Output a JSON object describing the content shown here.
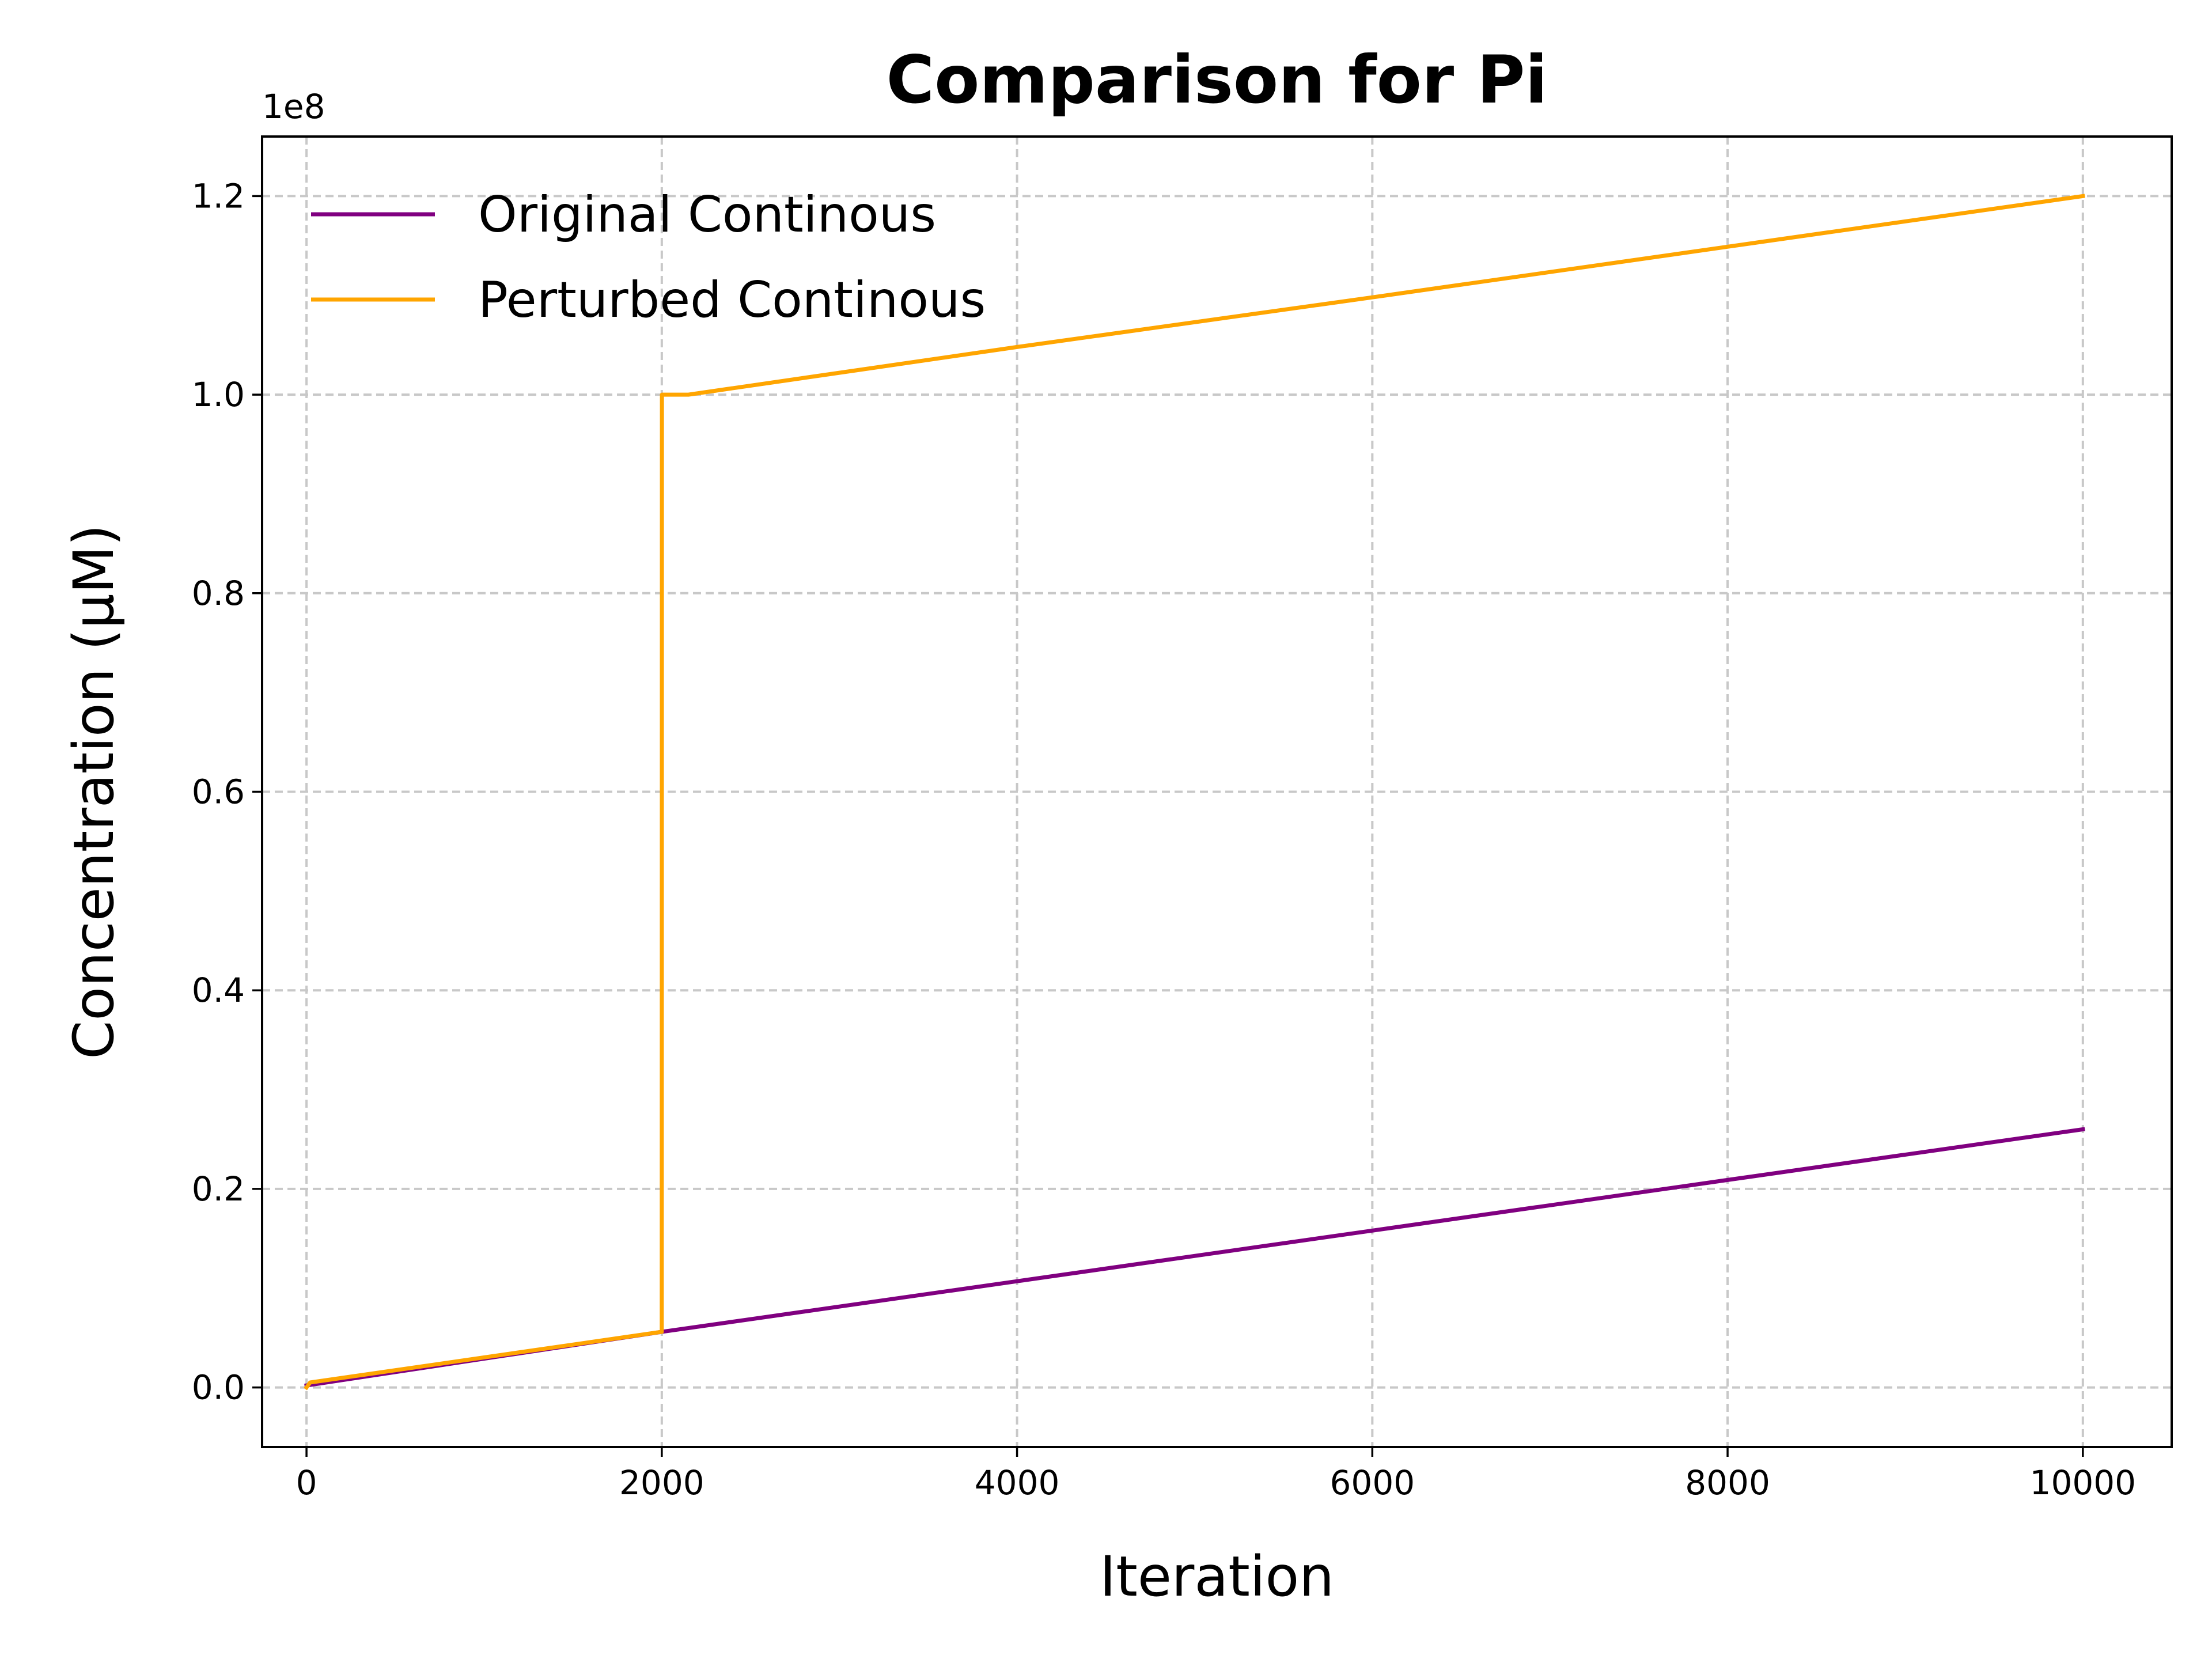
{
  "chart_data": {
    "type": "line",
    "title": "Comparison for Pi",
    "xlabel": "Iteration",
    "ylabel": "Concentration (μM)",
    "y_offset_label": "1e8",
    "y_scale_factor": 100000000,
    "xlim": [
      -250,
      10500
    ],
    "ylim": [
      -6000000,
      126000000
    ],
    "x_ticks": [
      0,
      2000,
      4000,
      6000,
      8000,
      10000
    ],
    "x_tick_labels": [
      "0",
      "2000",
      "4000",
      "6000",
      "8000",
      "10000"
    ],
    "y_ticks": [
      0,
      20000000,
      40000000,
      60000000,
      80000000,
      100000000,
      120000000
    ],
    "y_tick_labels": [
      "0.0",
      "0.2",
      "0.4",
      "0.6",
      "0.8",
      "1.0",
      "1.2"
    ],
    "grid": true,
    "legend_position": "top-left",
    "series": [
      {
        "name": "Original Continous",
        "color": "#800080",
        "x": [
          0,
          2000,
          4000,
          6000,
          8000,
          10000
        ],
        "y": [
          200000,
          5600000,
          10700000,
          15800000,
          20900000,
          26000000
        ]
      },
      {
        "name": "Perturbed Continous",
        "color": "#FFA500",
        "x": [
          0,
          20,
          1998,
          2000,
          2001,
          2150,
          4000,
          6000,
          8000,
          10000
        ],
        "y": [
          0,
          500000,
          5600000,
          5600000,
          100000000,
          100000000,
          104800000,
          109800000,
          114900000,
          120000000
        ]
      }
    ]
  }
}
